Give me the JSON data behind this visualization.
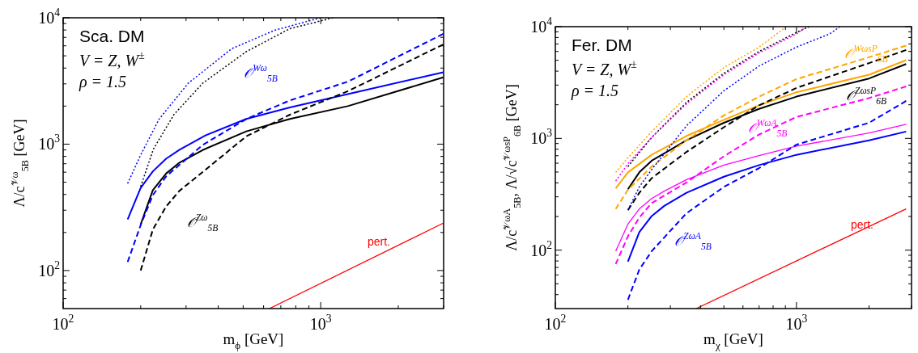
{
  "chart_data": [
    {
      "type": "line",
      "xlabel": "m$_{ϕ}$ [GeV]",
      "ylabel": "Λ/c$^{𝒱ω}$$_{5B}$ [GeV]",
      "log": "xy",
      "xlim": [
        100,
        3000
      ],
      "ylim": [
        50,
        10000
      ],
      "xticks": [
        {
          "value": 100,
          "label": "10$^{2}$"
        },
        {
          "value": 200,
          "label": null
        },
        {
          "value": 300,
          "label": null
        },
        {
          "value": 400,
          "label": null
        },
        {
          "value": 500,
          "label": null
        },
        {
          "value": 600,
          "label": null
        },
        {
          "value": 700,
          "label": null
        },
        {
          "value": 800,
          "label": null
        },
        {
          "value": 900,
          "label": null
        },
        {
          "value": 1000,
          "label": "10$^{3}$"
        },
        {
          "value": 2000,
          "label": null
        },
        {
          "value": 3000,
          "label": null
        }
      ],
      "yticks": [
        {
          "value": 60,
          "label": null
        },
        {
          "value": 70,
          "label": null
        },
        {
          "value": 80,
          "label": null
        },
        {
          "value": 90,
          "label": null
        },
        {
          "value": 100,
          "label": "10$^{2}$"
        },
        {
          "value": 200,
          "label": null
        },
        {
          "value": 300,
          "label": null
        },
        {
          "value": 400,
          "label": null
        },
        {
          "value": 500,
          "label": null
        },
        {
          "value": 600,
          "label": null
        },
        {
          "value": 700,
          "label": null
        },
        {
          "value": 800,
          "label": null
        },
        {
          "value": 900,
          "label": null
        },
        {
          "value": 1000,
          "label": "10$^{3}$"
        },
        {
          "value": 2000,
          "label": null
        },
        {
          "value": 3000,
          "label": null
        },
        {
          "value": 4000,
          "label": null
        },
        {
          "value": 5000,
          "label": null
        },
        {
          "value": 6000,
          "label": null
        },
        {
          "value": 7000,
          "label": null
        },
        {
          "value": 8000,
          "label": null
        },
        {
          "value": 9000,
          "label": null
        },
        {
          "value": 10000,
          "label": "10$^{4}$"
        }
      ],
      "series": [
        {
          "color": "#0000ff",
          "line_style": "solid",
          "x": [
            178,
            200,
            223,
            251,
            283,
            357,
            514,
            759,
            1274,
            2990
          ],
          "values": [
            254,
            451,
            609,
            767,
            903,
            1172,
            1582,
            1950,
            2490,
            3705
          ]
        },
        {
          "color": "#000000",
          "line_style": "solid",
          "x": [
            200,
            223,
            251,
            283,
            348,
            514,
            759,
            1274,
            2990
          ],
          "values": [
            232,
            433,
            585,
            714,
            898,
            1262,
            1582,
            2000,
            3375
          ]
        },
        {
          "color": "#ff0000",
          "line_style": "solid",
          "x": [
            632,
            2990
          ],
          "values": [
            50,
            237
          ]
        },
        {
          "color": "#0000ff",
          "line_style": "dashed",
          "x": [
            178,
            200,
            223,
            251,
            348,
            514,
            759,
            1274,
            2990
          ],
          "values": [
            117,
            229,
            395,
            556,
            985,
            1582,
            2218,
            3119,
            7460
          ]
        },
        {
          "color": "#000000",
          "line_style": "dashed",
          "x": [
            200,
            223,
            251,
            283,
            348,
            514,
            759,
            1274,
            2990
          ],
          "values": [
            100,
            211,
            321,
            428,
            601,
            1153,
            1710,
            2623,
            6150
          ]
        },
        {
          "color": "#0000ff",
          "line_style": "dotted",
          "x": [
            178,
            200,
            236,
            306,
            451,
            664,
            1000
          ],
          "values": [
            488,
            822,
            1582,
            3034,
            5690,
            7980,
            10000
          ]
        },
        {
          "color": "#000000",
          "line_style": "dotted",
          "x": [
            200,
            224,
            269,
            348,
            514,
            759,
            1117
          ],
          "values": [
            462,
            912,
            1710,
            3034,
            5394,
            8200,
            10000
          ]
        }
      ],
      "annotations": [
        "Sca. DM",
        "V = Z, W$^{±}$",
        "ρ = 1.5",
        "𝒪$^{Wω}$$_{5B}$",
        "𝒪$^{Zω}$$_{5B}$",
        "pert."
      ]
    },
    {
      "type": "line",
      "xlabel": "m$_{χ}$ [GeV]",
      "ylabel": "Λ/c$^{𝒱ωA}$$_{5B}$, Λ/√c$^{𝒱ωsP}$$_{6B}$ [GeV]",
      "log": "xy",
      "xlim": [
        100,
        3000
      ],
      "ylim": [
        30,
        10000
      ],
      "xticks": [
        {
          "value": 100,
          "label": "10$^{2}$"
        },
        {
          "value": 200,
          "label": null
        },
        {
          "value": 300,
          "label": null
        },
        {
          "value": 400,
          "label": null
        },
        {
          "value": 500,
          "label": null
        },
        {
          "value": 600,
          "label": null
        },
        {
          "value": 700,
          "label": null
        },
        {
          "value": 800,
          "label": null
        },
        {
          "value": 900,
          "label": null
        },
        {
          "value": 1000,
          "label": "10$^{3}$"
        },
        {
          "value": 2000,
          "label": null
        },
        {
          "value": 3000,
          "label": null
        }
      ],
      "yticks": [
        {
          "value": 40,
          "label": null
        },
        {
          "value": 50,
          "label": null
        },
        {
          "value": 60,
          "label": null
        },
        {
          "value": 70,
          "label": null
        },
        {
          "value": 80,
          "label": null
        },
        {
          "value": 90,
          "label": null
        },
        {
          "value": 100,
          "label": "10$^{2}$"
        },
        {
          "value": 200,
          "label": null
        },
        {
          "value": 300,
          "label": null
        },
        {
          "value": 400,
          "label": null
        },
        {
          "value": 500,
          "label": null
        },
        {
          "value": 600,
          "label": null
        },
        {
          "value": 700,
          "label": null
        },
        {
          "value": 800,
          "label": null
        },
        {
          "value": 900,
          "label": null
        },
        {
          "value": 1000,
          "label": "10$^{3}$"
        },
        {
          "value": 2000,
          "label": null
        },
        {
          "value": 3000,
          "label": null
        },
        {
          "value": 4000,
          "label": null
        },
        {
          "value": 5000,
          "label": null
        },
        {
          "value": 6000,
          "label": null
        },
        {
          "value": 7000,
          "label": null
        },
        {
          "value": 8000,
          "label": null
        },
        {
          "value": 9000,
          "label": null
        },
        {
          "value": 10000,
          "label": "10$^{4}$"
        }
      ],
      "series": [
        {
          "color": "#ffa500",
          "line_style": "solid",
          "x": [
            178,
            200,
            251,
            350,
            500,
            700,
            1000,
            2000,
            2850
          ],
          "values": [
            357,
            497,
            713,
            1052,
            1466,
            1977,
            2590,
            3715,
            5010
          ]
        },
        {
          "color": "#000000",
          "line_style": "solid",
          "x": [
            200,
            223,
            251,
            283,
            350,
            500,
            700,
            1000,
            2000,
            2850
          ],
          "values": [
            351,
            497,
            632,
            735,
            962,
            1380,
            1840,
            2366,
            3436,
            4630
          ]
        },
        {
          "color": "#ff00ff",
          "line_style": "solid",
          "x": [
            178,
            200,
            223,
            251,
            283,
            350,
            500,
            700,
            1000,
            2000,
            2850
          ],
          "values": [
            98,
            171,
            234,
            290,
            337,
            428,
            577,
            703,
            853,
            1117,
            1337
          ]
        },
        {
          "color": "#0000ff",
          "line_style": "solid",
          "x": [
            200,
            223,
            251,
            283,
            350,
            500,
            700,
            1000,
            2000,
            2850
          ],
          "values": [
            79,
            145,
            202,
            249,
            326,
            454,
            577,
            713,
            962,
            1151
          ]
        },
        {
          "color": "#ff0000",
          "line_style": "solid",
          "x": [
            384,
            2850
          ],
          "values": [
            30,
            234
          ]
        },
        {
          "color": "#ffa500",
          "line_style": "dashed",
          "x": [
            178,
            200,
            251,
            350,
            500,
            700,
            1000,
            2000,
            2850
          ],
          "values": [
            234,
            347,
            560,
            962,
            1604,
            2366,
            3396,
            5320,
            6770
          ]
        },
        {
          "color": "#000000",
          "line_style": "dashed",
          "x": [
            200,
            223,
            251,
            350,
            500,
            700,
            1000,
            2000,
            2850
          ],
          "values": [
            228,
            326,
            441,
            757,
            1259,
            1977,
            2830,
            4720,
            6180
          ]
        },
        {
          "color": "#ff00ff",
          "line_style": "dashed",
          "x": [
            178,
            200,
            223,
            251,
            350,
            500,
            700,
            1000,
            2000,
            2850
          ],
          "values": [
            75,
            133,
            196,
            264,
            403,
            692,
            1084,
            1555,
            2296,
            2917
          ]
        },
        {
          "color": "#0000ff",
          "line_style": "dashed",
          "x": [
            200,
            223,
            251,
            350,
            500,
            700,
            1000,
            2000,
            2850
          ],
          "values": [
            36,
            67,
            98,
            214,
            368,
            543,
            879,
            1380,
            2163
          ]
        },
        {
          "color": "#ffa500",
          "line_style": "dotted",
          "x": [
            178,
            200,
            251,
            350,
            500,
            700,
            908
          ],
          "values": [
            497,
            671,
            1151,
            2366,
            4310,
            6560,
            10000
          ]
        },
        {
          "color": "#000000",
          "line_style": "dotted",
          "x": [
            200,
            251,
            350,
            500,
            700,
            1000,
            1130
          ],
          "values": [
            560,
            1021,
            2099,
            3830,
            6000,
            8870,
            10000
          ]
        },
        {
          "color": "#ff00ff",
          "line_style": "dotted",
          "x": [
            178,
            200,
            251,
            350,
            500,
            700,
            1000,
            1100
          ],
          "values": [
            415,
            594,
            1021,
            2037,
            3716,
            5820,
            8600,
            10000
          ]
        },
        {
          "color": "#0000ff",
          "line_style": "dotted",
          "x": [
            200,
            223,
            251,
            350,
            500,
            700,
            1000,
            1370,
            1517
          ],
          "values": [
            228,
            368,
            527,
            1297,
            2667,
            4450,
            6560,
            8600,
            10000
          ]
        }
      ],
      "annotations": [
        "Fer. DM",
        "V = Z, W$^{±}$",
        "ρ = 1.5",
        "𝒪$^{WωsP}$$_{6B}$",
        "𝒪$^{ZωsP}$$_{6B}$",
        "𝒪$^{WωA}$$_{5B}$",
        "𝒪$^{ZωA}$$_{5B}$",
        "pert."
      ]
    }
  ]
}
